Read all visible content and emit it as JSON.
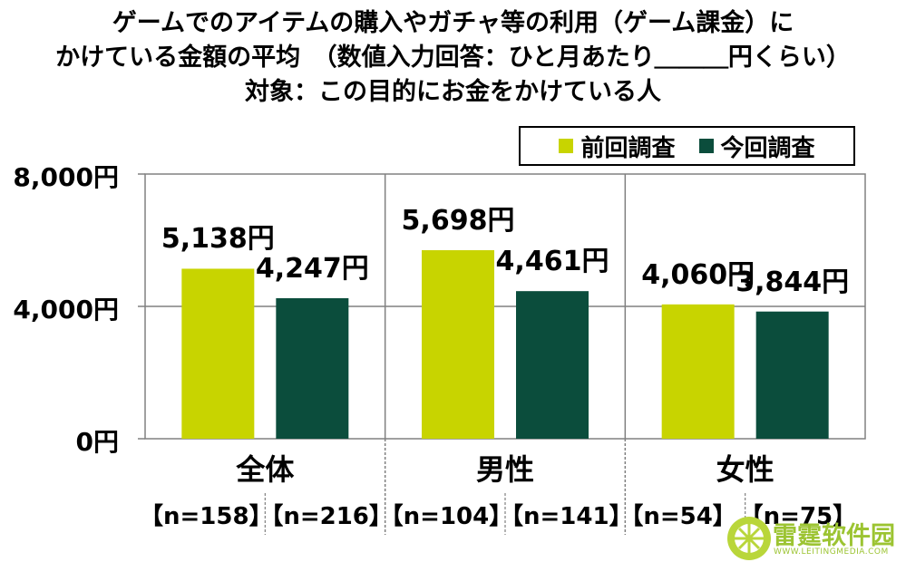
{
  "title": {
    "line1": "ゲームでのアイテムの購入やガチャ等の利用（ゲーム課金）に",
    "line2": "かけている金額の平均　（数値入力回答：ひと月あたり＿＿＿円くらい）",
    "line3": "対象：この目的にお金をかけている人"
  },
  "watermark": {
    "text": "雷霆软件园",
    "url": "WWW.LEITINGMEDIA.COM"
  },
  "chart_data": {
    "type": "bar",
    "categories": [
      "全体",
      "男性",
      "女性"
    ],
    "series": [
      {
        "name": "前回調査",
        "color": "#c8d400",
        "values": [
          5138,
          5698,
          4060
        ],
        "labels": [
          "5,138円",
          "5,698円",
          "4,060円"
        ],
        "n": [
          "【n=158】",
          "【n=104】",
          "【n=54】"
        ]
      },
      {
        "name": "今回調査",
        "color": "#0b4d3c",
        "values": [
          4247,
          4461,
          3844
        ],
        "labels": [
          "4,247円",
          "4,461円",
          "3,844円"
        ],
        "n": [
          "【n=216】",
          "【n=141】",
          "【n=75】"
        ]
      }
    ],
    "yticks": [
      "0円",
      "4,000円",
      "8,000円"
    ],
    "ytick_values": [
      0,
      4000,
      8000
    ],
    "ylim": [
      0,
      8000
    ],
    "grid": true,
    "legend": "top-right"
  }
}
